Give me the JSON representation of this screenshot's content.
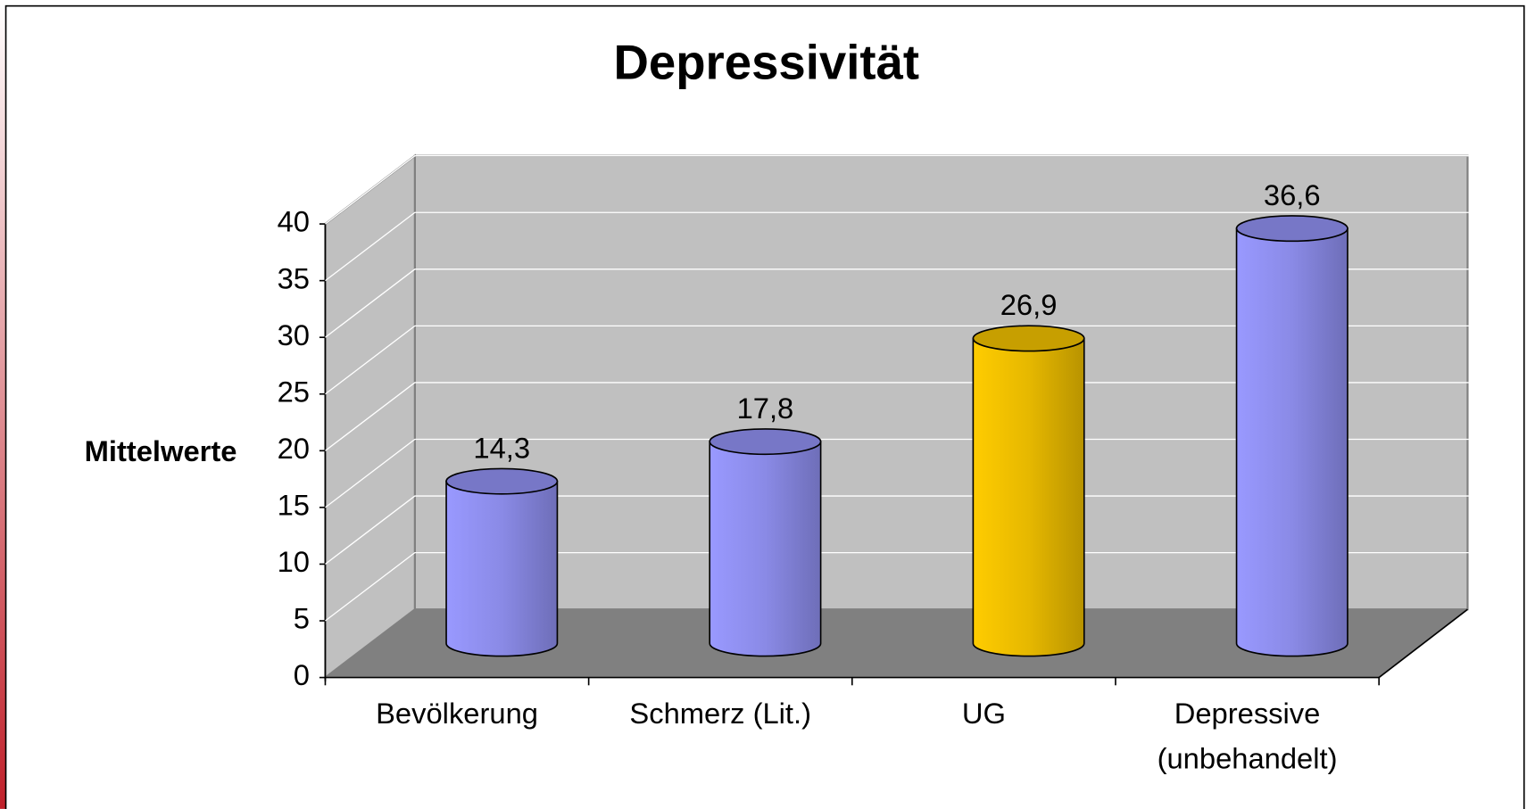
{
  "chart_data": {
    "type": "bar",
    "title": "Depressivität",
    "y_label": "Mittelwerte",
    "categories": [
      "Bevölkerung",
      "Schmerz (Lit.)",
      "UG",
      "Depressive (unbehandelt)"
    ],
    "values": [
      14.3,
      17.8,
      26.9,
      36.6
    ],
    "value_labels": [
      "14,3",
      "17,8",
      "26,9",
      "36,6"
    ],
    "colors": [
      "#9999ff",
      "#9999ff",
      "#ffcc00",
      "#9999ff"
    ],
    "ylim": [
      0,
      40
    ],
    "yticks": [
      0,
      5,
      10,
      15,
      20,
      25,
      30,
      35,
      40
    ],
    "grid": true
  }
}
